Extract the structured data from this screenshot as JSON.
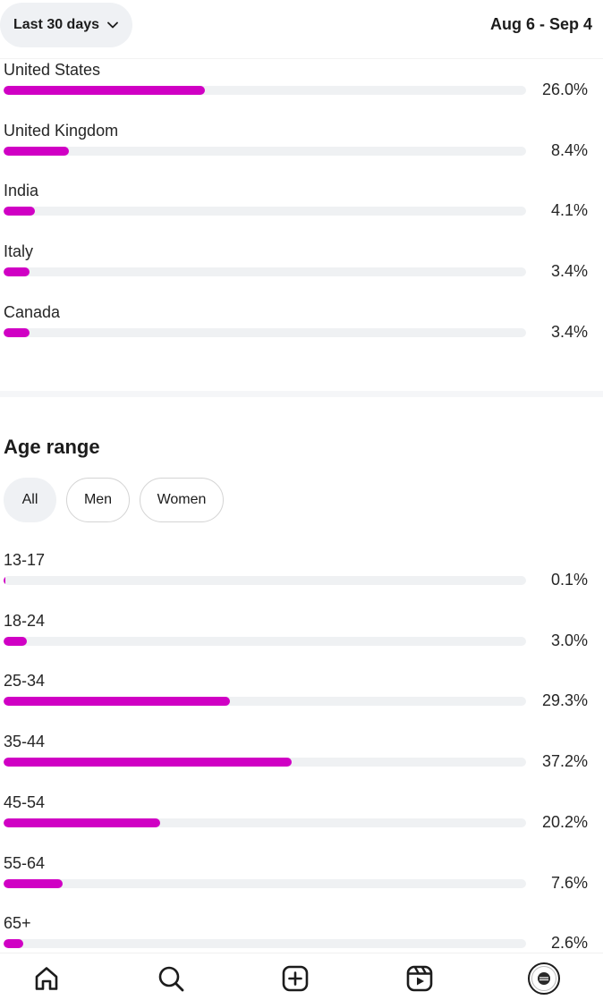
{
  "header": {
    "range_label": "Last 30 days",
    "date_range": "Aug 6 - Sep 4"
  },
  "locations": [
    {
      "label": "United States",
      "value": 26.0,
      "pct_text": "26.0%"
    },
    {
      "label": "United Kingdom",
      "value": 8.4,
      "pct_text": "8.4%"
    },
    {
      "label": "India",
      "value": 4.1,
      "pct_text": "4.1%"
    },
    {
      "label": "Italy",
      "value": 3.4,
      "pct_text": "3.4%"
    },
    {
      "label": "Canada",
      "value": 3.4,
      "pct_text": "3.4%"
    }
  ],
  "age_section": {
    "title": "Age range",
    "filters": [
      {
        "label": "All",
        "active": true
      },
      {
        "label": "Men",
        "active": false
      },
      {
        "label": "Women",
        "active": false
      }
    ],
    "rows": [
      {
        "label": "13-17",
        "value": 0.1,
        "pct_text": "0.1%"
      },
      {
        "label": "18-24",
        "value": 3.0,
        "pct_text": "3.0%"
      },
      {
        "label": "25-34",
        "value": 29.3,
        "pct_text": "29.3%"
      },
      {
        "label": "35-44",
        "value": 37.2,
        "pct_text": "37.2%"
      },
      {
        "label": "45-54",
        "value": 20.2,
        "pct_text": "20.2%"
      },
      {
        "label": "55-64",
        "value": 7.6,
        "pct_text": "7.6%"
      },
      {
        "label": "65+",
        "value": 2.6,
        "pct_text": "2.6%"
      }
    ]
  },
  "colors": {
    "bar_fill": "#d000c4",
    "bar_track": "#eff1f3"
  },
  "nav": {
    "icons": [
      "home-icon",
      "search-icon",
      "create-icon",
      "reels-icon",
      "profile-avatar"
    ]
  }
}
